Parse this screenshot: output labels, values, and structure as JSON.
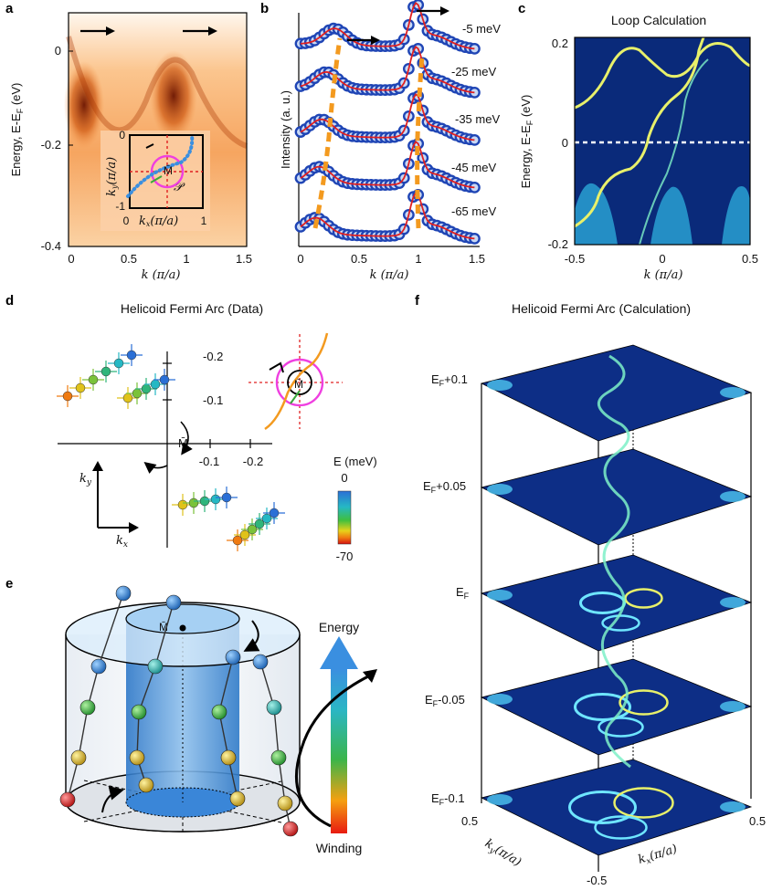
{
  "panels": {
    "a": {
      "label": "a",
      "ylabel": "Energy, E-E",
      "ylabel_sub": "F",
      "ylabel_unit": " (eV)",
      "yticks": [
        "0",
        "-0.2",
        "-0.4"
      ],
      "xticks": [
        "0",
        "0.5",
        "1",
        "1.5"
      ],
      "xlabel": "k (π/a)",
      "inset": {
        "kx_label": "k",
        "kx_sub": "x",
        "ky_label": "k",
        "ky_sub": "y",
        "unit": "(π/a)",
        "ticks_left": [
          "0",
          "-1"
        ],
        "ticks_bottom": [
          "0",
          "1"
        ],
        "point": "M̄",
        "path": "𝒫"
      }
    },
    "b": {
      "label": "b",
      "ylabel": "Intensity (a. u.)",
      "xticks": [
        "0",
        "0.5",
        "1",
        "1.5"
      ],
      "xlabel": "k (π/a)",
      "curves": [
        "-5 meV",
        "-25 meV",
        "-35 meV",
        "-45 meV",
        "-65 meV"
      ]
    },
    "c": {
      "label": "c",
      "title": "Loop Calculation",
      "ylabel": "Energy, E-E",
      "ylabel_sub": "F",
      "ylabel_unit": " (eV)",
      "yticks": [
        "0.2",
        "0",
        "-0.2"
      ],
      "xticks": [
        "-0.5",
        "0",
        "0.5"
      ],
      "xlabel": "k (π/a)"
    },
    "d": {
      "label": "d",
      "title": "Helicoid Fermi Arc (Data)",
      "yticks": [
        "-0.2",
        "-0.1"
      ],
      "xticks": [
        "-0.1",
        "-0.2"
      ],
      "origin": "M̄",
      "ky": "k",
      "ky_sub": "y",
      "kx": "k",
      "kx_sub": "x",
      "colorbar_title": "E (meV)",
      "colorbar_top": "0",
      "colorbar_bottom": "-70"
    },
    "e": {
      "label": "e",
      "point": "M̄",
      "energy": "Energy",
      "winding": "Winding"
    },
    "f": {
      "label": "f",
      "title": "Helicoid Fermi Arc (Calculation)",
      "layers": [
        "E",
        "E",
        "E",
        "E",
        "E"
      ],
      "layer_subs": [
        "F",
        "F",
        "F",
        "F",
        "F"
      ],
      "layer_suffix": [
        "+0.1",
        "+0.05",
        "",
        "-0.05",
        "-0.1"
      ],
      "ky": "k",
      "ky_sub": "y",
      "kx": "k",
      "kx_sub": "x",
      "unit": "(π/a)",
      "tick_left": "0.5",
      "tick_right": "0.5",
      "tick_bottom": "-0.5"
    }
  },
  "colors": {
    "arpes_dark": "#7a1f00",
    "arpes_light": "#fde0c0",
    "fit_red": "#e02020",
    "marker_blue": "#1f45b5",
    "dashed_orange": "#f39a1f",
    "calc_bg": "#0a2a7a",
    "calc_band": "#6fe6ff",
    "magenta": "#ef3fe0"
  }
}
